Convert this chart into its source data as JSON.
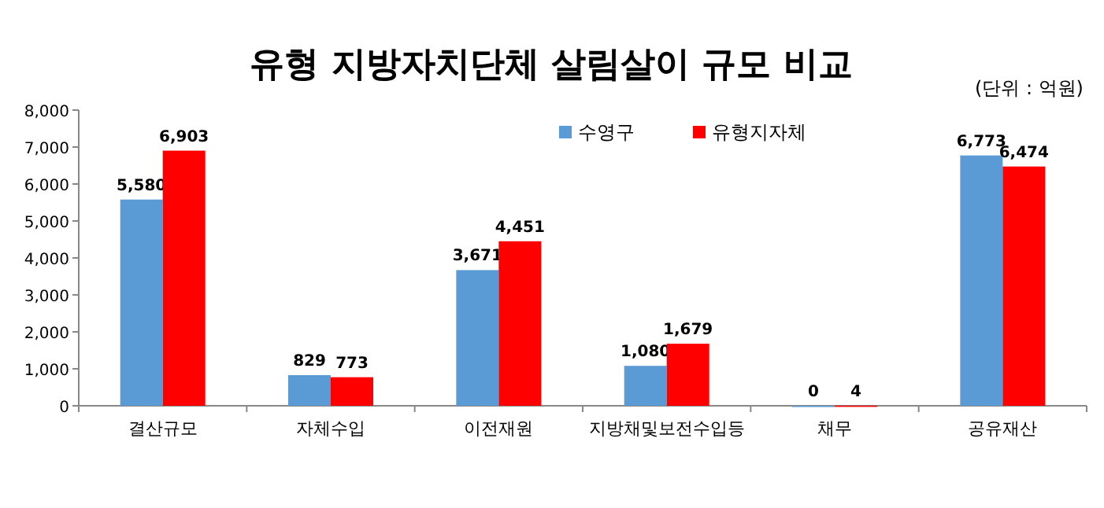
{
  "chart_data": {
    "type": "bar",
    "title": "유형 지방자치단체 살림살이 규모 비교",
    "annotations": [
      "(단위 : 억원)"
    ],
    "categories": [
      "결산규모",
      "자체수입",
      "이전재원",
      "지방채및보전수입등",
      "채무",
      "공유재산"
    ],
    "series": [
      {
        "name": "수영구",
        "color": "#5b9bd5",
        "values": [
          5580,
          829,
          3671,
          1080,
          0,
          6773
        ],
        "value_labels": [
          "5,580",
          "829",
          "3,671",
          "1,080",
          "0",
          "6,773"
        ]
      },
      {
        "name": "유형지자체",
        "color": "#ff0000",
        "values": [
          6903,
          773,
          4451,
          1679,
          4,
          6474
        ],
        "value_labels": [
          "6,903",
          "773",
          "4,451",
          "1,679",
          "4",
          "6,474"
        ]
      }
    ],
    "ylim": [
      0,
      8000
    ],
    "yticks": [
      {
        "value": 0,
        "label": "0"
      },
      {
        "value": 1000,
        "label": "1,000"
      },
      {
        "value": 2000,
        "label": "2,000"
      },
      {
        "value": 3000,
        "label": "3,000"
      },
      {
        "value": 4000,
        "label": "4,000"
      },
      {
        "value": 5000,
        "label": "5,000"
      },
      {
        "value": 6000,
        "label": "6,000"
      },
      {
        "value": 7000,
        "label": "7,000"
      },
      {
        "value": 8000,
        "label": "8,000"
      }
    ],
    "legend": "top",
    "grid": false
  }
}
